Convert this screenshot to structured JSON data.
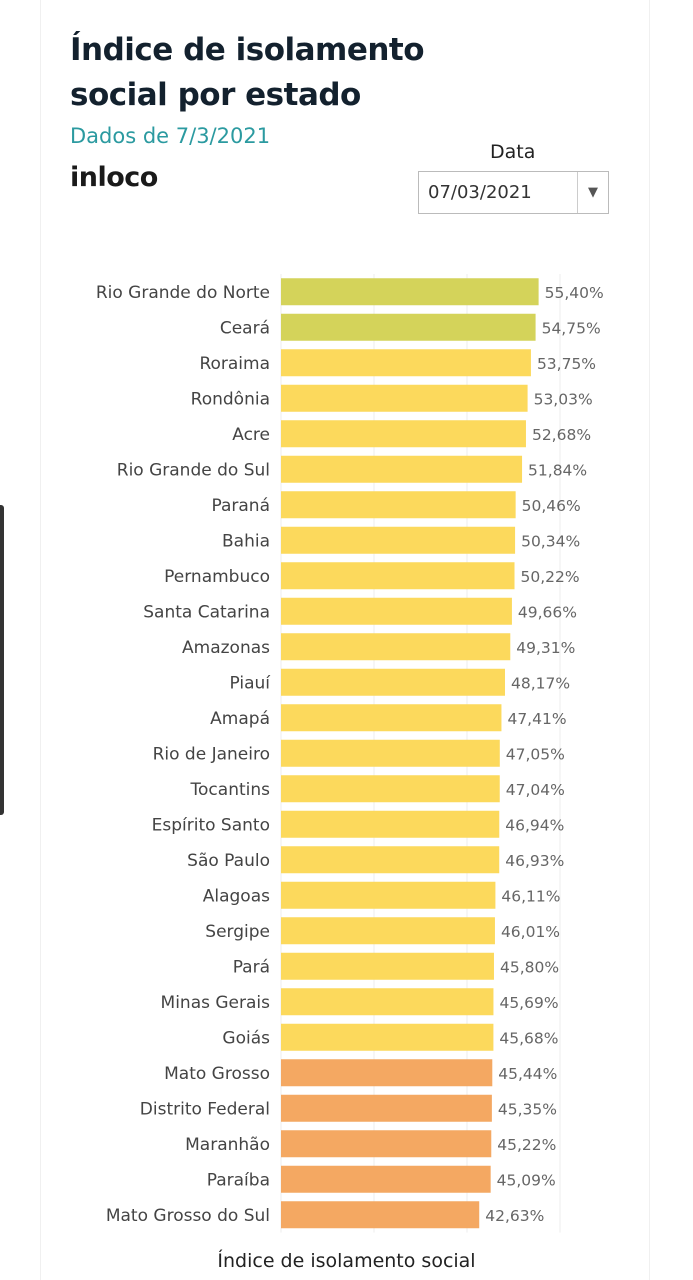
{
  "header": {
    "title_line1": "Índice de isolamento",
    "title_line2": "social por estado",
    "subtitle": "Dados de 7/3/2021",
    "brand": "inloco"
  },
  "filter": {
    "label": "Data",
    "value": "07/03/2021",
    "icon": "chevron-down-icon"
  },
  "colors": {
    "high": "#d4d35a",
    "mid": "#fcd95c",
    "low": "#f4a862",
    "grid": "#ececec"
  },
  "chart_data": {
    "type": "bar",
    "orientation": "horizontal",
    "title": "Índice de isolamento social por estado",
    "xlabel": "Índice de isolamento social",
    "xlim": [
      0,
      60
    ],
    "grid": true,
    "categories": [
      "Rio Grande do Norte",
      "Ceará",
      "Roraima",
      "Rondônia",
      "Acre",
      "Rio Grande do Sul",
      "Paraná",
      "Bahia",
      "Pernambuco",
      "Santa Catarina",
      "Amazonas",
      "Piauí",
      "Amapá",
      "Rio de Janeiro",
      "Tocantins",
      "Espírito Santo",
      "São Paulo",
      "Alagoas",
      "Sergipe",
      "Pará",
      "Minas Gerais",
      "Goiás",
      "Mato Grosso",
      "Distrito Federal",
      "Maranhão",
      "Paraíba",
      "Mato Grosso do Sul"
    ],
    "values": [
      55.4,
      54.75,
      53.75,
      53.03,
      52.68,
      51.84,
      50.46,
      50.34,
      50.22,
      49.66,
      49.31,
      48.17,
      47.41,
      47.05,
      47.04,
      46.94,
      46.93,
      46.11,
      46.01,
      45.8,
      45.69,
      45.68,
      45.44,
      45.35,
      45.22,
      45.09,
      42.63
    ],
    "labels": [
      "55,40%",
      "54,75%",
      "53,75%",
      "53,03%",
      "52,68%",
      "51,84%",
      "50,46%",
      "50,34%",
      "50,22%",
      "49,66%",
      "49,31%",
      "48,17%",
      "47,41%",
      "47,05%",
      "47,04%",
      "46,94%",
      "46,93%",
      "46,11%",
      "46,01%",
      "45,80%",
      "45,69%",
      "45,68%",
      "45,44%",
      "45,35%",
      "45,22%",
      "45,09%",
      "42,63%"
    ],
    "color_groups": [
      "high",
      "high",
      "mid",
      "mid",
      "mid",
      "mid",
      "mid",
      "mid",
      "mid",
      "mid",
      "mid",
      "mid",
      "mid",
      "mid",
      "mid",
      "mid",
      "mid",
      "mid",
      "mid",
      "mid",
      "mid",
      "mid",
      "low",
      "low",
      "low",
      "low",
      "low"
    ]
  }
}
